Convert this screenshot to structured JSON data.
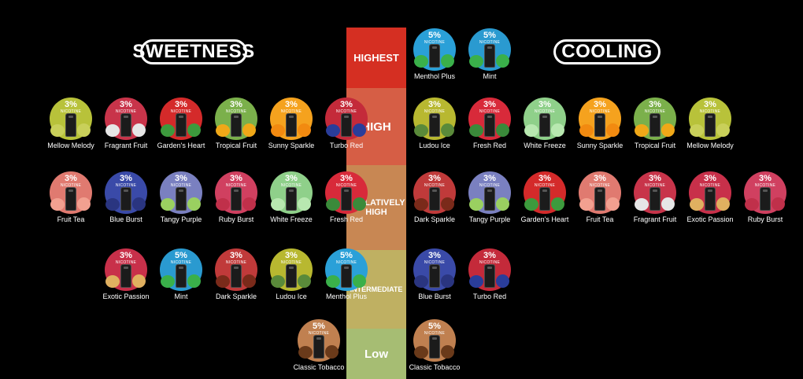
{
  "headers": {
    "sweetness": "SWEETNESS",
    "cooling": "COOLING"
  },
  "nicotine_word": "NICOTINE",
  "colors": {
    "highest": "#d63023",
    "high": "#d9604a",
    "relatively_high": "#c88a55",
    "intermediate": "#c0b060",
    "low": "#a8c070"
  },
  "levels": [
    {
      "key": "highest",
      "label": "HIGHEST",
      "color": "#d52f22"
    },
    {
      "key": "high",
      "label": "HIGH",
      "color": "#d65e45"
    },
    {
      "key": "relatively_high",
      "label": "RELATIVELY HIGH",
      "color": "#c88753"
    },
    {
      "key": "intermediate",
      "label": "INTERMEDIATE",
      "color": "#bfb062"
    },
    {
      "key": "low",
      "label": "Low",
      "color": "#a6bd73"
    }
  ],
  "sweetness": {
    "high": [
      {
        "name": "Mellow Melody",
        "nicotine": "3%",
        "color": "#b8c23a",
        "fruit": "#c9d05a"
      },
      {
        "name": "Fragrant Fruit",
        "nicotine": "3%",
        "color": "#c8344a",
        "fruit": "#e6e6e6"
      },
      {
        "name": "Garden's Heart",
        "nicotine": "3%",
        "color": "#d42a2a",
        "fruit": "#3d9a3d"
      },
      {
        "name": "Tropical Fruit",
        "nicotine": "3%",
        "color": "#7bb04b",
        "fruit": "#f0a818"
      },
      {
        "name": "Sunny Sparkle",
        "nicotine": "3%",
        "color": "#f5a21e",
        "fruit": "#f28a10"
      },
      {
        "name": "Turbo Red",
        "nicotine": "3%",
        "color": "#c42a3a",
        "fruit": "#2a3d9a"
      }
    ],
    "relatively_high": [
      {
        "name": "Fruit Tea",
        "nicotine": "3%",
        "color": "#e07a70",
        "fruit": "#f2a090"
      },
      {
        "name": "Blue Burst",
        "nicotine": "3%",
        "color": "#3a4aa8",
        "fruit": "#2a3580"
      },
      {
        "name": "Tangy Purple",
        "nicotine": "3%",
        "color": "#7a80c0",
        "fruit": "#9ad060"
      },
      {
        "name": "Ruby Burst",
        "nicotine": "3%",
        "color": "#d04060",
        "fruit": "#c0304a"
      },
      {
        "name": "White Freeze",
        "nicotine": "3%",
        "color": "#8fd08a",
        "fruit": "#b8e8b0"
      },
      {
        "name": "Fresh Red",
        "nicotine": "3%",
        "color": "#d82a3a",
        "fruit": "#3a8a3a"
      }
    ],
    "intermediate": [
      {
        "name": "Exotic Passion",
        "nicotine": "3%",
        "color": "#c8304a",
        "fruit": "#e0b060"
      },
      {
        "name": "Mint",
        "nicotine": "5%",
        "color": "#2a9ad0",
        "fruit": "#3ab04a"
      },
      {
        "name": "Dark Sparkle",
        "nicotine": "3%",
        "color": "#c03a3a",
        "fruit": "#7a2a1a"
      },
      {
        "name": "Ludou Ice",
        "nicotine": "3%",
        "color": "#b8b830",
        "fruit": "#5a8a3a"
      },
      {
        "name": "Menthol Plus",
        "nicotine": "5%",
        "color": "#2aa0d8",
        "fruit": "#3ab04a"
      }
    ],
    "low": [
      {
        "name": "Classic Tobacco",
        "nicotine": "5%",
        "color": "#c08050",
        "fruit": "#6a3a1a"
      }
    ]
  },
  "cooling": {
    "highest": [
      {
        "name": "Menthol Plus",
        "nicotine": "5%",
        "color": "#2aa0d8",
        "fruit": "#3ab04a"
      },
      {
        "name": "Mint",
        "nicotine": "5%",
        "color": "#2a9ad0",
        "fruit": "#3ab04a"
      }
    ],
    "high": [
      {
        "name": "Ludou Ice",
        "nicotine": "3%",
        "color": "#b8b830",
        "fruit": "#5a8a3a"
      },
      {
        "name": "Fresh Red",
        "nicotine": "3%",
        "color": "#d82a3a",
        "fruit": "#3a8a3a"
      },
      {
        "name": "White Freeze",
        "nicotine": "3%",
        "color": "#8fd08a",
        "fruit": "#b8e8b0"
      },
      {
        "name": "Sunny Sparkle",
        "nicotine": "3%",
        "color": "#f5a21e",
        "fruit": "#f28a10"
      },
      {
        "name": "Tropical Fruit",
        "nicotine": "3%",
        "color": "#7bb04b",
        "fruit": "#f0a818"
      },
      {
        "name": "Mellow Melody",
        "nicotine": "3%",
        "color": "#b8c23a",
        "fruit": "#c9d05a"
      }
    ],
    "relatively_high": [
      {
        "name": "Dark Sparkle",
        "nicotine": "3%",
        "color": "#c03a3a",
        "fruit": "#7a2a1a"
      },
      {
        "name": "Tangy Purple",
        "nicotine": "3%",
        "color": "#7a80c0",
        "fruit": "#9ad060"
      },
      {
        "name": "Garden's Heart",
        "nicotine": "3%",
        "color": "#d42a2a",
        "fruit": "#3d9a3d"
      },
      {
        "name": "Fruit Tea",
        "nicotine": "3%",
        "color": "#e07a70",
        "fruit": "#f2a090"
      },
      {
        "name": "Fragrant Fruit",
        "nicotine": "3%",
        "color": "#c8344a",
        "fruit": "#e6e6e6"
      },
      {
        "name": "Exotic Passion",
        "nicotine": "3%",
        "color": "#c8304a",
        "fruit": "#e0b060"
      },
      {
        "name": "Ruby Burst",
        "nicotine": "3%",
        "color": "#d04060",
        "fruit": "#c0304a"
      }
    ],
    "intermediate": [
      {
        "name": "Blue Burst",
        "nicotine": "3%",
        "color": "#3a4aa8",
        "fruit": "#2a3580"
      },
      {
        "name": "Turbo Red",
        "nicotine": "3%",
        "color": "#c42a3a",
        "fruit": "#2a3d9a"
      }
    ],
    "low": [
      {
        "name": "Classic Tobacco",
        "nicotine": "5%",
        "color": "#c08050",
        "fruit": "#6a3a1a"
      }
    ]
  }
}
